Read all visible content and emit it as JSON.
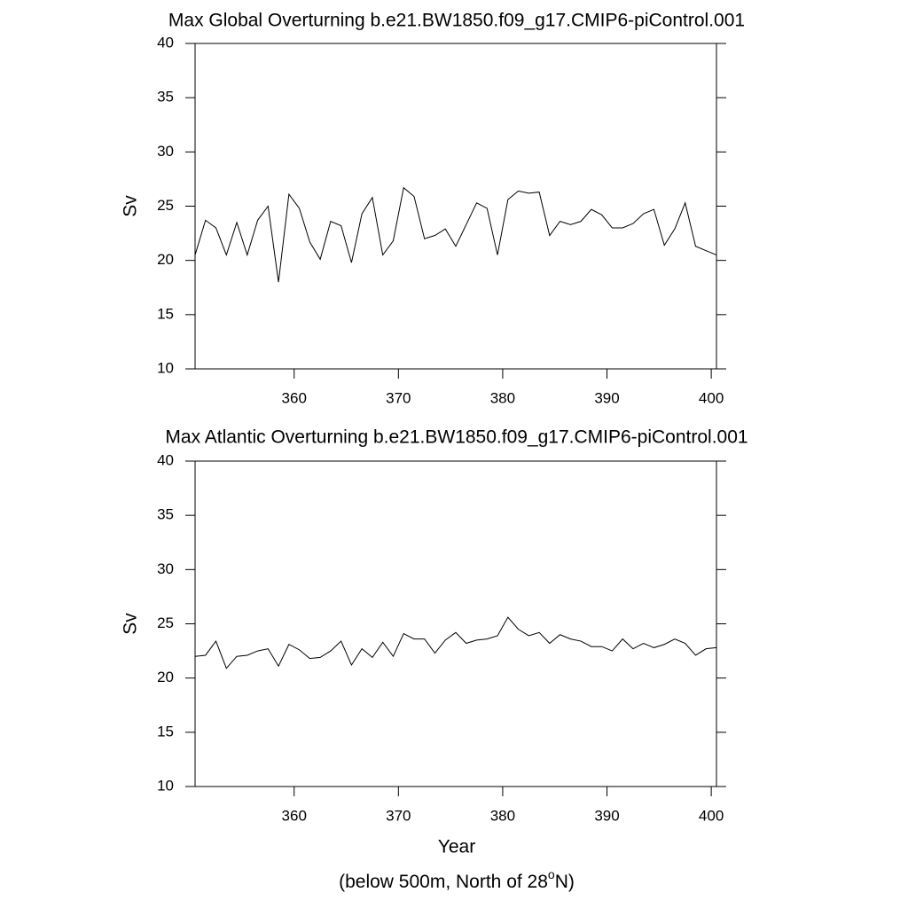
{
  "chart_data": [
    {
      "type": "line",
      "title": "Max Global Overturning b.e21.BW1850.f09_g17.CMIP6-piControl.001",
      "ylabel": "Sv",
      "x": [
        350.5,
        351.5,
        352.5,
        353.5,
        354.5,
        355.5,
        356.5,
        357.5,
        358.5,
        359.5,
        360.5,
        361.5,
        362.5,
        363.5,
        364.5,
        365.5,
        366.5,
        367.5,
        368.5,
        369.5,
        370.5,
        371.5,
        372.5,
        373.5,
        374.5,
        375.5,
        376.5,
        377.5,
        378.5,
        379.5,
        380.5,
        381.5,
        382.5,
        383.5,
        384.5,
        385.5,
        386.5,
        387.5,
        388.5,
        389.5,
        390.5,
        391.5,
        392.5,
        393.5,
        394.5,
        395.5,
        396.5,
        397.5,
        398.5,
        399.5,
        400.5
      ],
      "values": [
        20.5,
        23.7,
        23.0,
        20.5,
        23.5,
        20.5,
        23.7,
        25.0,
        18.0,
        26.1,
        24.8,
        21.7,
        20.1,
        23.6,
        23.2,
        19.8,
        24.3,
        25.8,
        20.5,
        21.8,
        26.7,
        25.9,
        22.0,
        22.3,
        22.9,
        21.3,
        23.3,
        25.3,
        24.8,
        20.5,
        25.6,
        26.4,
        26.2,
        26.3,
        22.3,
        23.6,
        23.3,
        23.6,
        24.7,
        24.2,
        23.0,
        23.0,
        23.4,
        24.3,
        24.7,
        21.4,
        22.9,
        25.3,
        21.3,
        20.9,
        20.5
      ],
      "color": "#000000",
      "xlim": [
        350.5,
        400.5
      ],
      "xticks": [
        360,
        370,
        380,
        390,
        400
      ],
      "ylim": [
        10,
        40
      ],
      "yticks": [
        10,
        15,
        20,
        25,
        30,
        35,
        40
      ]
    },
    {
      "type": "line",
      "title": "Max Atlantic Overturning b.e21.BW1850.f09_g17.CMIP6-piControl.001",
      "ylabel": "Sv",
      "xlabel": "Year",
      "annotation": {
        "text": "(below 500m, North of 28",
        "superscript": "o",
        "suffix": "N)"
      },
      "x": [
        350.5,
        351.5,
        352.5,
        353.5,
        354.5,
        355.5,
        356.5,
        357.5,
        358.5,
        359.5,
        360.5,
        361.5,
        362.5,
        363.5,
        364.5,
        365.5,
        366.5,
        367.5,
        368.5,
        369.5,
        370.5,
        371.5,
        372.5,
        373.5,
        374.5,
        375.5,
        376.5,
        377.5,
        378.5,
        379.5,
        380.5,
        381.5,
        382.5,
        383.5,
        384.5,
        385.5,
        386.5,
        387.5,
        388.5,
        389.5,
        390.5,
        391.5,
        392.5,
        393.5,
        394.5,
        395.5,
        396.5,
        397.5,
        398.5,
        399.5,
        400.5
      ],
      "values": [
        22.0,
        22.1,
        23.4,
        20.9,
        22.0,
        22.1,
        22.5,
        22.7,
        21.1,
        23.1,
        22.6,
        21.8,
        21.9,
        22.5,
        23.4,
        21.2,
        22.7,
        21.9,
        23.3,
        22.0,
        24.1,
        23.6,
        23.6,
        22.3,
        23.5,
        24.2,
        23.2,
        23.5,
        23.6,
        23.9,
        25.6,
        24.5,
        23.9,
        24.2,
        23.2,
        24.0,
        23.6,
        23.4,
        22.9,
        22.9,
        22.5,
        23.6,
        22.7,
        23.2,
        22.8,
        23.1,
        23.6,
        23.2,
        22.1,
        22.7,
        22.8
      ],
      "color": "#000000",
      "xlim": [
        350.5,
        400.5
      ],
      "xticks": [
        360,
        370,
        380,
        390,
        400
      ],
      "ylim": [
        10,
        40
      ],
      "yticks": [
        10,
        15,
        20,
        25,
        30,
        35,
        40
      ]
    }
  ]
}
